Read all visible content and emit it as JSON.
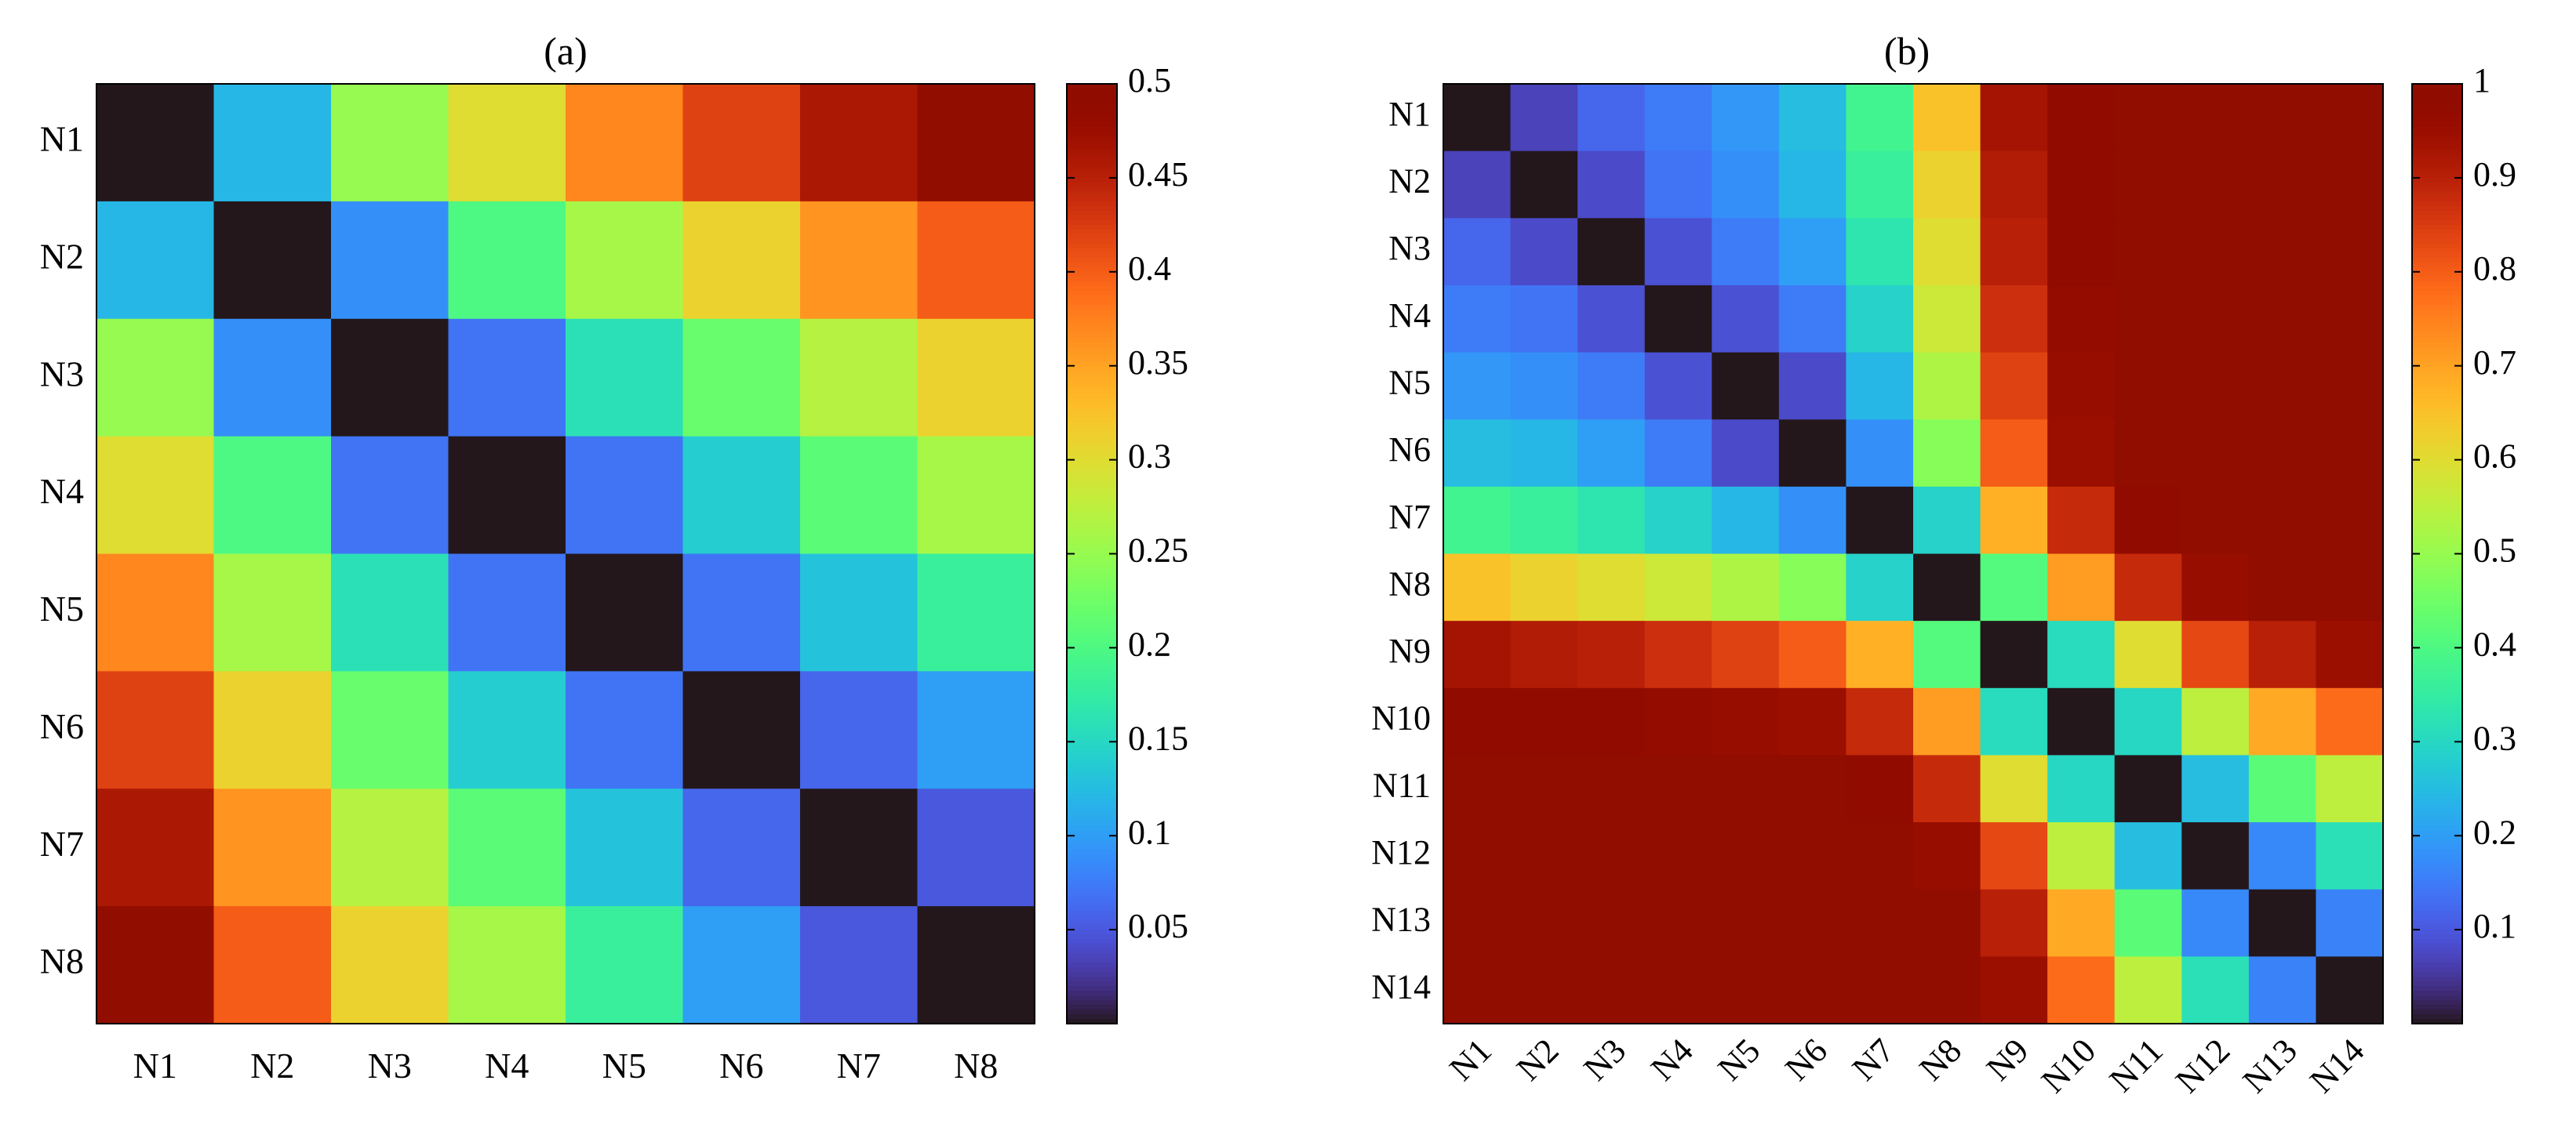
{
  "chart_data": [
    {
      "type": "heatmap",
      "title": "(a)",
      "rows": [
        "N1",
        "N2",
        "N3",
        "N4",
        "N5",
        "N6",
        "N7",
        "N8"
      ],
      "cols": [
        "N1",
        "N2",
        "N3",
        "N4",
        "N5",
        "N6",
        "N7",
        "N8"
      ],
      "zlim": [
        0,
        0.5
      ],
      "colorbar_ticks": [
        "0.05",
        "0.1",
        "0.15",
        "0.2",
        "0.25",
        "0.3",
        "0.35",
        "0.4",
        "0.45",
        "0.5"
      ],
      "colormap": "turbo",
      "values": [
        [
          0.0,
          0.12,
          0.25,
          0.3,
          0.37,
          0.42,
          0.46,
          0.5
        ],
        [
          0.12,
          0.0,
          0.09,
          0.2,
          0.26,
          0.31,
          0.36,
          0.4
        ],
        [
          0.25,
          0.09,
          0.0,
          0.07,
          0.16,
          0.22,
          0.27,
          0.31
        ],
        [
          0.3,
          0.2,
          0.07,
          0.0,
          0.07,
          0.14,
          0.21,
          0.26
        ],
        [
          0.37,
          0.26,
          0.16,
          0.07,
          0.0,
          0.07,
          0.13,
          0.18
        ],
        [
          0.42,
          0.31,
          0.22,
          0.14,
          0.07,
          0.0,
          0.06,
          0.1
        ],
        [
          0.46,
          0.36,
          0.27,
          0.21,
          0.13,
          0.06,
          0.0,
          0.05
        ],
        [
          0.5,
          0.4,
          0.31,
          0.26,
          0.18,
          0.1,
          0.05,
          0.0
        ]
      ]
    },
    {
      "type": "heatmap",
      "title": "(b)",
      "rows": [
        "N1",
        "N2",
        "N3",
        "N4",
        "N5",
        "N6",
        "N7",
        "N8",
        "N9",
        "N10",
        "N11",
        "N12",
        "N13",
        "N14"
      ],
      "cols": [
        "N1",
        "N2",
        "N3",
        "N4",
        "N5",
        "N6",
        "N7",
        "N8",
        "N9",
        "N10",
        "N11",
        "N12",
        "N13",
        "N14"
      ],
      "zlim": [
        0,
        1
      ],
      "colorbar_ticks": [
        "0.1",
        "0.2",
        "0.3",
        "0.4",
        "0.5",
        "0.6",
        "0.7",
        "0.8",
        "0.9",
        "1"
      ],
      "colormap": "turbo",
      "values": [
        [
          0.0,
          0.07,
          0.12,
          0.15,
          0.19,
          0.25,
          0.38,
          0.65,
          0.93,
          0.98,
          1.0,
          1.0,
          1.0,
          1.0
        ],
        [
          0.07,
          0.0,
          0.08,
          0.14,
          0.18,
          0.24,
          0.36,
          0.62,
          0.91,
          0.98,
          1.0,
          1.0,
          1.0,
          1.0
        ],
        [
          0.12,
          0.08,
          0.0,
          0.09,
          0.15,
          0.2,
          0.33,
          0.6,
          0.9,
          0.98,
          1.0,
          1.0,
          1.0,
          1.0
        ],
        [
          0.15,
          0.14,
          0.09,
          0.0,
          0.09,
          0.15,
          0.29,
          0.57,
          0.87,
          0.97,
          1.0,
          1.0,
          1.0,
          1.0
        ],
        [
          0.19,
          0.18,
          0.15,
          0.09,
          0.0,
          0.08,
          0.24,
          0.53,
          0.84,
          0.96,
          1.0,
          1.0,
          1.0,
          1.0
        ],
        [
          0.25,
          0.24,
          0.2,
          0.15,
          0.08,
          0.0,
          0.18,
          0.48,
          0.8,
          0.95,
          1.0,
          1.0,
          1.0,
          1.0
        ],
        [
          0.38,
          0.36,
          0.33,
          0.29,
          0.24,
          0.18,
          0.0,
          0.29,
          0.68,
          0.88,
          0.98,
          1.0,
          1.0,
          1.0
        ],
        [
          0.65,
          0.62,
          0.6,
          0.57,
          0.53,
          0.48,
          0.29,
          0.0,
          0.41,
          0.71,
          0.88,
          0.96,
          1.0,
          1.0
        ],
        [
          0.93,
          0.91,
          0.9,
          0.87,
          0.84,
          0.8,
          0.68,
          0.41,
          0.0,
          0.31,
          0.6,
          0.83,
          0.9,
          0.95
        ],
        [
          0.98,
          0.98,
          0.98,
          0.97,
          0.96,
          0.95,
          0.88,
          0.71,
          0.31,
          0.0,
          0.3,
          0.55,
          0.69,
          0.78
        ],
        [
          1.0,
          1.0,
          1.0,
          1.0,
          1.0,
          1.0,
          0.98,
          0.88,
          0.6,
          0.3,
          0.0,
          0.25,
          0.42,
          0.55
        ],
        [
          1.0,
          1.0,
          1.0,
          1.0,
          1.0,
          1.0,
          1.0,
          0.96,
          0.83,
          0.55,
          0.25,
          0.0,
          0.17,
          0.32
        ],
        [
          1.0,
          1.0,
          1.0,
          1.0,
          1.0,
          1.0,
          1.0,
          1.0,
          0.9,
          0.69,
          0.42,
          0.17,
          0.0,
          0.16
        ],
        [
          1.0,
          1.0,
          1.0,
          1.0,
          1.0,
          1.0,
          1.0,
          1.0,
          0.95,
          0.78,
          0.55,
          0.32,
          0.16,
          0.0
        ]
      ]
    }
  ]
}
